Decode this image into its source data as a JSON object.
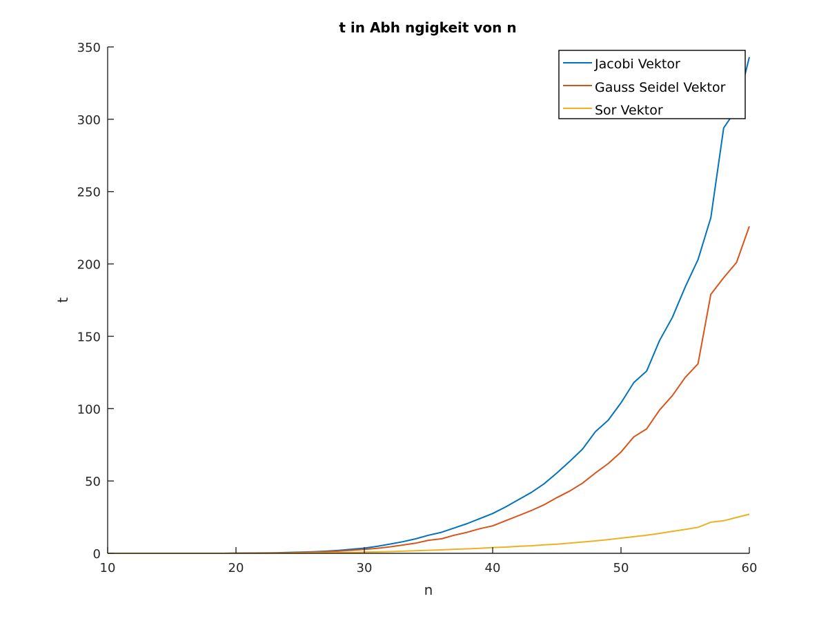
{
  "chart_data": {
    "type": "line",
    "title": "t in Abh ngigkeit von n",
    "xlabel": "n",
    "ylabel": "t",
    "xlim": [
      10,
      60
    ],
    "ylim": [
      0,
      350
    ],
    "xticks": [
      10,
      20,
      30,
      40,
      50,
      60
    ],
    "yticks": [
      0,
      50,
      100,
      150,
      200,
      250,
      300,
      350
    ],
    "xtick_labels": [
      "10",
      "20",
      "30",
      "40",
      "50",
      "60"
    ],
    "ytick_labels": [
      "0",
      "50",
      "100",
      "150",
      "200",
      "250",
      "300",
      "350"
    ],
    "grid": false,
    "legend_position": "top-right",
    "series": [
      {
        "name": "Jacobi Vektor",
        "color": "#0072BD",
        "x": [
          10,
          11,
          12,
          13,
          14,
          15,
          16,
          17,
          18,
          19,
          20,
          21,
          22,
          23,
          24,
          25,
          26,
          27,
          28,
          29,
          30,
          31,
          32,
          33,
          34,
          35,
          36,
          37,
          38,
          39,
          40,
          41,
          42,
          43,
          44,
          45,
          46,
          47,
          48,
          49,
          50,
          51,
          52,
          53,
          54,
          55,
          56,
          57,
          58,
          59,
          60
        ],
        "y": [
          0,
          0,
          0,
          0,
          0,
          0,
          0,
          0,
          0,
          0,
          0.1,
          0.2,
          0.3,
          0.4,
          0.6,
          0.8,
          1.1,
          1.5,
          2,
          2.8,
          3.6,
          4.8,
          6.4,
          8,
          10,
          12.5,
          14.5,
          17.5,
          20.5,
          24,
          27.5,
          32,
          37,
          42,
          48,
          55.5,
          63.5,
          72,
          84,
          92,
          104,
          118,
          126,
          147,
          163,
          184,
          203,
          232,
          294,
          307,
          343
        ]
      },
      {
        "name": "Gauss Seidel Vektor",
        "color": "#D95319",
        "x": [
          10,
          11,
          12,
          13,
          14,
          15,
          16,
          17,
          18,
          19,
          20,
          21,
          22,
          23,
          24,
          25,
          26,
          27,
          28,
          29,
          30,
          31,
          32,
          33,
          34,
          35,
          36,
          37,
          38,
          39,
          40,
          41,
          42,
          43,
          44,
          45,
          46,
          47,
          48,
          49,
          50,
          51,
          52,
          53,
          54,
          55,
          56,
          57,
          58,
          59,
          60
        ],
        "y": [
          0,
          0,
          0,
          0,
          0,
          0,
          0,
          0,
          0,
          0,
          0.1,
          0.1,
          0.2,
          0.3,
          0.4,
          0.6,
          0.8,
          1.1,
          1.5,
          2.1,
          2.7,
          3.5,
          4.5,
          5.7,
          7,
          9,
          10,
          12.5,
          14.5,
          17,
          19,
          22.5,
          26,
          29.5,
          33.5,
          38.5,
          43,
          48.5,
          55.5,
          62,
          70,
          80.5,
          86,
          99,
          109,
          121.5,
          131,
          179,
          190.5,
          201,
          226
        ]
      },
      {
        "name": "Sor Vektor",
        "color": "#EDB120",
        "x": [
          10,
          11,
          12,
          13,
          14,
          15,
          16,
          17,
          18,
          19,
          20,
          21,
          22,
          23,
          24,
          25,
          26,
          27,
          28,
          29,
          30,
          31,
          32,
          33,
          34,
          35,
          36,
          37,
          38,
          39,
          40,
          41,
          42,
          43,
          44,
          45,
          46,
          47,
          48,
          49,
          50,
          51,
          52,
          53,
          54,
          55,
          56,
          57,
          58,
          59,
          60
        ],
        "y": [
          0,
          0,
          0,
          0,
          0,
          0,
          0,
          0,
          0,
          0,
          0,
          0,
          0.05,
          0.1,
          0.15,
          0.2,
          0.3,
          0.4,
          0.5,
          0.6,
          0.8,
          1,
          1.2,
          1.5,
          1.8,
          2.1,
          2.4,
          2.8,
          3.1,
          3.5,
          4,
          4.3,
          4.8,
          5.2,
          5.8,
          6.3,
          7,
          7.8,
          8.6,
          9.5,
          10.5,
          11.5,
          12.5,
          13.8,
          15.2,
          16.5,
          18,
          21.5,
          22.5,
          24.8,
          27
        ]
      }
    ]
  }
}
